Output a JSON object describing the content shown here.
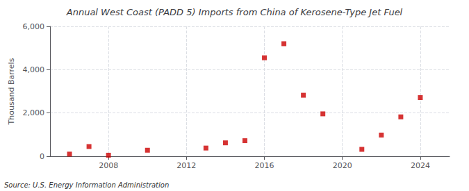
{
  "chart_data": {
    "type": "scatter",
    "title": "Annual West Coast (PADD 5) Imports from China of Kerosene-Type Jet Fuel",
    "ylabel": "Thousand Barrels",
    "source": "Source: U.S. Energy Information Administration",
    "x": [
      2006,
      2007,
      2008,
      2010,
      2013,
      2014,
      2015,
      2016,
      2017,
      2018,
      2019,
      2021,
      2022,
      2023,
      2024
    ],
    "values": [
      100,
      450,
      50,
      280,
      380,
      620,
      720,
      4550,
      5200,
      2820,
      1960,
      320,
      980,
      1820,
      2710
    ],
    "color": "#cc0000",
    "marker": "square",
    "xlim": [
      2005.0,
      2025.5
    ],
    "xticks": [
      2008,
      2012,
      2016,
      2020,
      2024
    ],
    "ylim": [
      0,
      6000
    ],
    "yticks": [
      0,
      {
        "value": 2000,
        "label": "2,000"
      },
      {
        "value": 4000,
        "label": "4,000"
      },
      {
        "value": 6000,
        "label": "6,000"
      }
    ],
    "grid": true
  }
}
